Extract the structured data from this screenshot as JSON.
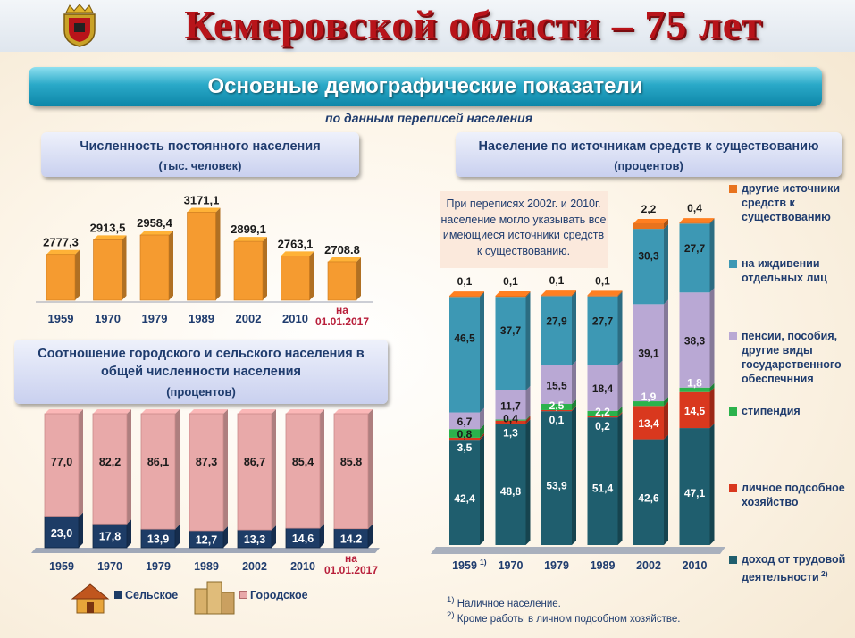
{
  "header": {
    "title": "Кемеровской области – 75 лет",
    "banner": "Основные демографические показатели",
    "subtitle": "по данным переписей населения"
  },
  "chart_data": [
    {
      "type": "bar",
      "title": "Численность постоянного населения",
      "unit": "(тыс. человек)",
      "categories": [
        "1959",
        "1970",
        "1979",
        "1989",
        "2002",
        "2010",
        "на 01.01.2017"
      ],
      "values": [
        2777.3,
        2913.5,
        2958.4,
        3171.1,
        2899.1,
        2763.1,
        2708.8
      ],
      "value_labels": [
        "2777,3",
        "2913,5",
        "2958,4",
        "3171,1",
        "2899,1",
        "2763,1",
        "2708.8"
      ],
      "colors": {
        "bar": "#f59b30"
      }
    },
    {
      "type": "bar",
      "stacked": true,
      "title": "Соотношение городского и сельского населения в общей численности населения",
      "unit": "(процентов)",
      "categories": [
        "1959",
        "1970",
        "1979",
        "1989",
        "2002",
        "2010",
        "на 01.01.2017"
      ],
      "series": [
        {
          "name": "Сельское",
          "values": [
            23.0,
            17.8,
            13.9,
            12.7,
            13.3,
            14.6,
            14.2
          ],
          "labels": [
            "23,0",
            "17,8",
            "13,9",
            "12,7",
            "13,3",
            "14,6",
            "14.2"
          ],
          "color": "#1d3c66"
        },
        {
          "name": "Городское",
          "values": [
            77.0,
            82.2,
            86.1,
            87.3,
            86.7,
            85.4,
            85.8
          ],
          "labels": [
            "77,0",
            "82,2",
            "86,1",
            "87,3",
            "86,7",
            "85,4",
            "85.8"
          ],
          "color": "#e8a9a9"
        }
      ]
    },
    {
      "type": "bar",
      "stacked": true,
      "title": "Население по источникам средств к существованию",
      "unit": "(процентов)",
      "categories": [
        "1959",
        "1970",
        "1979",
        "1989",
        "2002",
        "2010"
      ],
      "category_superscripts": [
        "1)",
        "",
        "",
        "",
        "",
        ""
      ],
      "series": [
        {
          "name": "доход от трудовой деятельности",
          "superscript": "2)",
          "color": "#1f5e6e",
          "values": [
            42.4,
            48.8,
            53.9,
            51.4,
            42.6,
            47.1
          ],
          "labels": [
            "42,4",
            "48,8",
            "53,9",
            "51,4",
            "42,6",
            "47,1"
          ]
        },
        {
          "name": "личное подсобное хозяйство",
          "color": "#d9381e",
          "values": [
            0.8,
            1.3,
            0.1,
            0.2,
            13.4,
            14.5
          ],
          "labels": [
            "0,8",
            "1,3",
            "0,1",
            "0,2",
            "13,4",
            "14,5"
          ]
        },
        {
          "name": "стипендия",
          "color": "#2bb24c",
          "values": [
            3.5,
            0.4,
            2.5,
            2.2,
            1.9,
            1.8
          ],
          "labels": [
            "3,5",
            "0,4",
            "2,5",
            "2,2",
            "1,9",
            "1,8"
          ]
        },
        {
          "name": "пенсии, пособия, другие виды государственного обеспечнния",
          "color": "#b9a8d4",
          "values": [
            6.7,
            11.7,
            15.5,
            18.4,
            39.1,
            38.3
          ],
          "labels": [
            "6,7",
            "11,7",
            "15,5",
            "18,4",
            "39,1",
            "38,3"
          ]
        },
        {
          "name": "на иждивении отдельных лиц",
          "color": "#3d98b4",
          "values": [
            46.5,
            37.7,
            27.9,
            27.7,
            30.3,
            27.7
          ],
          "labels": [
            "46,5",
            "37,7",
            "27,9",
            "27,7",
            "30,3",
            "27,7"
          ]
        },
        {
          "name": "другие источники средств к существованию",
          "color": "#e8731e",
          "values": [
            0.1,
            0.1,
            0.1,
            0.1,
            2.2,
            0.4
          ],
          "labels": [
            "0,1",
            "0,1",
            "0,1",
            "0,1",
            "2,2",
            "0,4"
          ]
        }
      ],
      "note": "При переписях 2002г. и 2010г. население могло указывать все имеющиеся источники средств к существованию.",
      "footnotes": [
        {
          "mark": "1)",
          "text": "Наличное население."
        },
        {
          "mark": "2)",
          "text": "Кроме работы в личном подсобном хозяйстве."
        }
      ]
    }
  ]
}
